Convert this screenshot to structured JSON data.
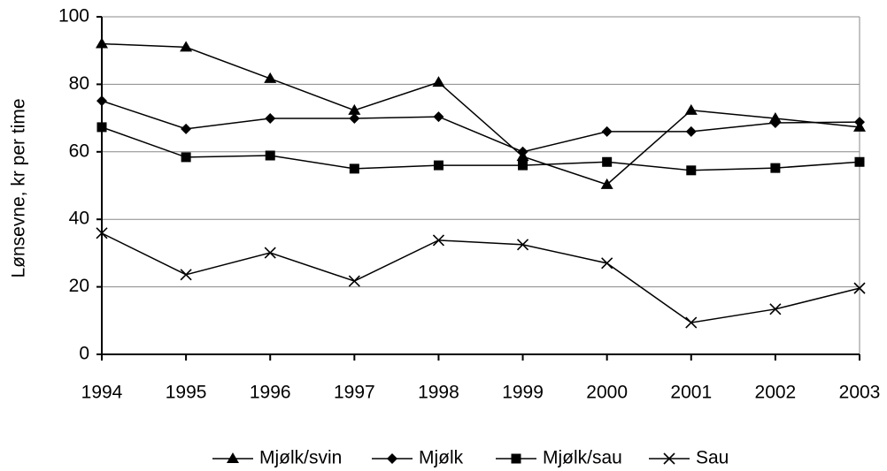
{
  "chart_data": {
    "type": "line",
    "y_label": "Lønsevne, kr per time",
    "categories": [
      "1994",
      "1995",
      "1996",
      "1997",
      "1998",
      "1999",
      "2000",
      "2001",
      "2002",
      "2003"
    ],
    "series": [
      {
        "name": "Mjølk/svin",
        "color": "#000000",
        "marker": "triangle",
        "values": [
          92,
          91,
          81.7,
          72.3,
          80.6,
          58.6,
          50.3,
          72.3,
          69.9,
          67.3
        ]
      },
      {
        "name": "Mjølk",
        "color": "#000000",
        "marker": "diamond",
        "values": [
          75.1,
          66.8,
          69.9,
          69.9,
          70.4,
          60,
          66,
          66,
          68.6,
          68.8
        ]
      },
      {
        "name": "Mjølk/sau",
        "color": "#000000",
        "marker": "square",
        "values": [
          67.3,
          58.4,
          58.9,
          55,
          56,
          56,
          57,
          54.5,
          55.2,
          57
        ]
      },
      {
        "name": "Sau",
        "color": "#000000",
        "marker": "x",
        "values": [
          35.9,
          23.6,
          30.1,
          21.7,
          33.8,
          32.5,
          27,
          9.4,
          13.4,
          19.6
        ]
      }
    ],
    "ylim": [
      0,
      100
    ],
    "yticks": [
      0,
      20,
      40,
      60,
      80,
      100
    ],
    "grid": true,
    "legend": "bottom"
  }
}
